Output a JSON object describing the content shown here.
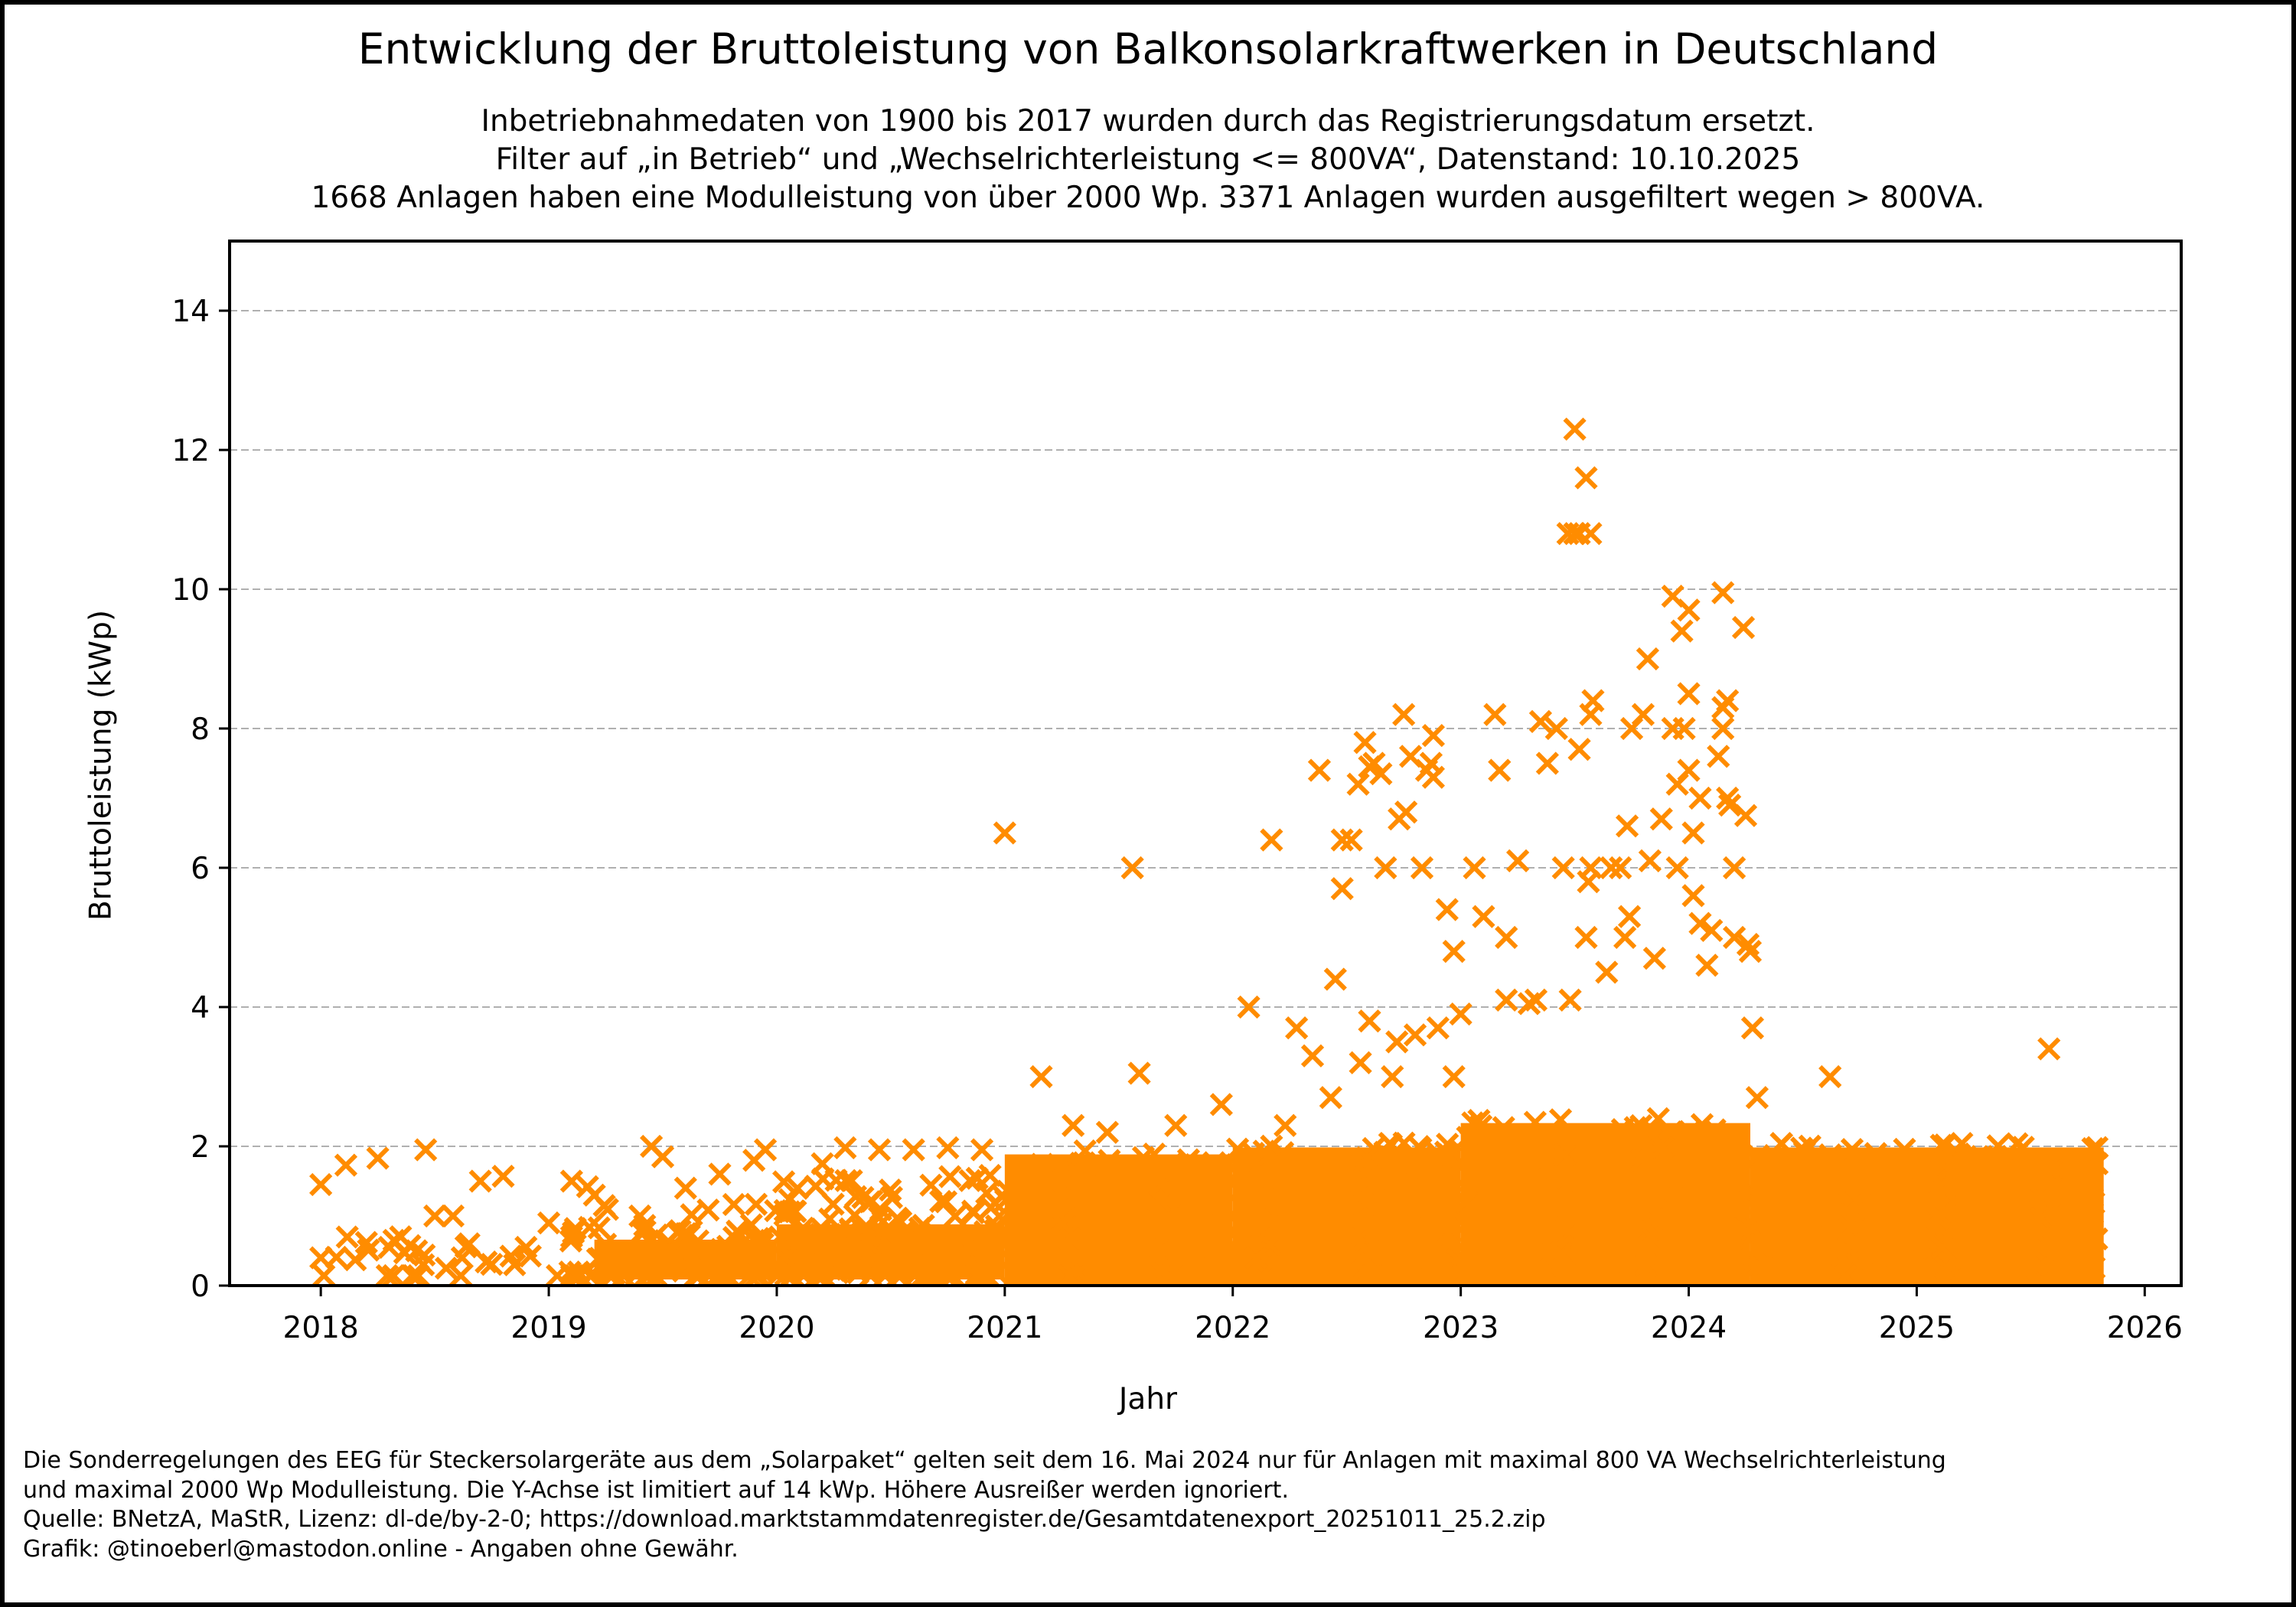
{
  "chart_data": {
    "type": "scatter",
    "title": "Entwicklung der Bruttoleistung von Balkonsolarkraftwerken in Deutschland",
    "subtitle_lines": [
      "Inbetriebnahmedaten von 1900 bis 2017 wurden durch das Registrierungsdatum ersetzt.",
      "Filter auf „in Betrieb“ und „Wechselrichterleistung <= 800VA“, Datenstand: 10.10.2025",
      "1668 Anlagen haben eine Modulleistung von über 2000 Wp. 3371 Anlagen wurden ausgefiltert wegen > 800VA."
    ],
    "xlabel": "Jahr",
    "ylabel": "Bruttoleistung (kWp)",
    "xlim": [
      2017.6,
      2026.16
    ],
    "ylim": [
      0,
      15
    ],
    "x_ticks": [
      2018,
      2019,
      2020,
      2021,
      2022,
      2023,
      2024,
      2025,
      2026
    ],
    "x_tick_labels": [
      "2018",
      "2019",
      "2020",
      "2021",
      "2022",
      "2023",
      "2024",
      "2025",
      "2026"
    ],
    "y_ticks": [
      0,
      2,
      4,
      6,
      8,
      10,
      12,
      14
    ],
    "y_tick_labels": [
      "0",
      "2",
      "4",
      "6",
      "8",
      "10",
      "12",
      "14"
    ],
    "grid": "y-dashed",
    "marker": "x",
    "color": "#ff8c00",
    "dense_bands": [
      {
        "x_start": 2018.0,
        "x_end": 2019.2,
        "y_max": 0.9,
        "density": 0.15
      },
      {
        "x_start": 2019.2,
        "x_end": 2020.0,
        "y_max": 1.2,
        "density": 0.55
      },
      {
        "x_start": 2020.0,
        "x_end": 2021.0,
        "y_max": 1.6,
        "density": 0.8
      },
      {
        "x_start": 2021.0,
        "x_end": 2022.0,
        "y_max": 1.95,
        "density": 0.95
      },
      {
        "x_start": 2022.0,
        "x_end": 2023.0,
        "y_max": 2.05,
        "density": 1.0
      },
      {
        "x_start": 2023.0,
        "x_end": 2024.27,
        "y_max": 2.4,
        "density": 1.0
      },
      {
        "x_start": 2024.27,
        "x_end": 2025.82,
        "y_max": 2.05,
        "density": 1.0
      }
    ],
    "points": [
      [
        2018.0,
        1.45
      ],
      [
        2018.0,
        0.4
      ],
      [
        2018.11,
        1.73
      ],
      [
        2018.25,
        1.83
      ],
      [
        2018.46,
        1.95
      ],
      [
        2018.2,
        0.62
      ],
      [
        2018.3,
        0.55
      ],
      [
        2018.35,
        0.7
      ],
      [
        2018.42,
        0.5
      ],
      [
        2018.5,
        1.0
      ],
      [
        2018.58,
        1.0
      ],
      [
        2018.65,
        0.6
      ],
      [
        2018.7,
        1.5
      ],
      [
        2018.8,
        1.57
      ],
      [
        2018.9,
        0.55
      ],
      [
        2019.0,
        0.9
      ],
      [
        2018.45,
        0.3
      ],
      [
        2018.55,
        0.25
      ],
      [
        2018.62,
        0.4
      ],
      [
        2018.85,
        0.3
      ],
      [
        2019.1,
        0.7
      ],
      [
        2019.1,
        1.5
      ],
      [
        2019.17,
        1.42
      ],
      [
        2019.2,
        1.3
      ],
      [
        2019.4,
        1.0
      ],
      [
        2019.45,
        2.0
      ],
      [
        2019.5,
        1.85
      ],
      [
        2019.6,
        1.4
      ],
      [
        2019.75,
        1.6
      ],
      [
        2019.9,
        1.8
      ],
      [
        2019.95,
        1.95
      ],
      [
        2020.2,
        1.75
      ],
      [
        2020.3,
        1.98
      ],
      [
        2020.45,
        1.95
      ],
      [
        2020.6,
        1.95
      ],
      [
        2020.75,
        1.98
      ],
      [
        2020.9,
        1.95
      ],
      [
        2021.0,
        6.5
      ],
      [
        2021.16,
        3.0
      ],
      [
        2021.56,
        6.0
      ],
      [
        2021.59,
        3.05
      ],
      [
        2021.3,
        2.3
      ],
      [
        2021.45,
        2.2
      ],
      [
        2021.75,
        2.3
      ],
      [
        2021.95,
        2.6
      ],
      [
        2022.07,
        4.0
      ],
      [
        2022.17,
        6.4
      ],
      [
        2022.23,
        2.3
      ],
      [
        2022.28,
        3.7
      ],
      [
        2022.35,
        3.3
      ],
      [
        2022.38,
        7.4
      ],
      [
        2022.43,
        2.7
      ],
      [
        2022.45,
        4.4
      ],
      [
        2022.48,
        5.7
      ],
      [
        2022.48,
        6.4
      ],
      [
        2022.52,
        6.4
      ],
      [
        2022.55,
        7.2
      ],
      [
        2022.58,
        7.8
      ],
      [
        2022.6,
        7.45
      ],
      [
        2022.62,
        7.5
      ],
      [
        2022.65,
        7.35
      ],
      [
        2022.67,
        6.0
      ],
      [
        2022.56,
        3.2
      ],
      [
        2022.6,
        3.8
      ],
      [
        2022.7,
        3.0
      ],
      [
        2022.72,
        3.5
      ],
      [
        2022.73,
        6.7
      ],
      [
        2022.75,
        8.2
      ],
      [
        2022.76,
        6.8
      ],
      [
        2022.78,
        7.6
      ],
      [
        2022.8,
        3.6
      ],
      [
        2022.83,
        6.0
      ],
      [
        2022.85,
        7.4
      ],
      [
        2022.87,
        7.5
      ],
      [
        2022.88,
        7.9
      ],
      [
        2022.88,
        7.3
      ],
      [
        2022.9,
        3.7
      ],
      [
        2022.94,
        5.4
      ],
      [
        2022.97,
        4.8
      ],
      [
        2023.0,
        3.9
      ],
      [
        2022.97,
        3.0
      ],
      [
        2023.06,
        6.0
      ],
      [
        2023.1,
        5.3
      ],
      [
        2023.15,
        8.2
      ],
      [
        2023.17,
        7.4
      ],
      [
        2023.2,
        5.0
      ],
      [
        2023.2,
        4.1
      ],
      [
        2023.25,
        6.1
      ],
      [
        2023.3,
        4.05
      ],
      [
        2023.33,
        4.1
      ],
      [
        2023.35,
        8.1
      ],
      [
        2023.38,
        7.5
      ],
      [
        2023.42,
        8.0
      ],
      [
        2023.45,
        6.0
      ],
      [
        2023.48,
        4.1
      ],
      [
        2023.5,
        12.3
      ],
      [
        2023.47,
        10.8
      ],
      [
        2023.5,
        10.8
      ],
      [
        2023.52,
        10.8
      ],
      [
        2023.57,
        10.8
      ],
      [
        2023.55,
        11.6
      ],
      [
        2023.52,
        7.7
      ],
      [
        2023.55,
        5.0
      ],
      [
        2023.56,
        5.8
      ],
      [
        2023.57,
        6.0
      ],
      [
        2023.57,
        8.2
      ],
      [
        2023.58,
        8.4
      ],
      [
        2023.64,
        4.5
      ],
      [
        2023.66,
        6.0
      ],
      [
        2023.7,
        6.0
      ],
      [
        2023.72,
        5.0
      ],
      [
        2023.74,
        5.3
      ],
      [
        2023.73,
        6.6
      ],
      [
        2023.75,
        8.0
      ],
      [
        2023.8,
        8.2
      ],
      [
        2023.82,
        9.0
      ],
      [
        2023.83,
        6.1
      ],
      [
        2023.85,
        4.7
      ],
      [
        2023.88,
        6.7
      ],
      [
        2023.93,
        9.9
      ],
      [
        2023.93,
        8.0
      ],
      [
        2023.95,
        7.2
      ],
      [
        2023.95,
        6.0
      ],
      [
        2023.97,
        9.4
      ],
      [
        2023.98,
        8.0
      ],
      [
        2024.0,
        9.7
      ],
      [
        2024.0,
        8.5
      ],
      [
        2024.0,
        7.4
      ],
      [
        2024.02,
        6.5
      ],
      [
        2024.02,
        5.6
      ],
      [
        2024.05,
        7.0
      ],
      [
        2024.05,
        5.2
      ],
      [
        2024.08,
        4.6
      ],
      [
        2024.1,
        5.1
      ],
      [
        2024.13,
        7.6
      ],
      [
        2024.15,
        9.95
      ],
      [
        2024.15,
        8.3
      ],
      [
        2024.17,
        8.4
      ],
      [
        2024.15,
        8.0
      ],
      [
        2024.17,
        7.0
      ],
      [
        2024.18,
        6.9
      ],
      [
        2024.2,
        6.0
      ],
      [
        2024.2,
        5.0
      ],
      [
        2024.24,
        9.45
      ],
      [
        2024.25,
        6.75
      ],
      [
        2024.26,
        4.9
      ],
      [
        2024.27,
        4.8
      ],
      [
        2024.28,
        3.7
      ],
      [
        2024.3,
        2.7
      ],
      [
        2024.62,
        3.0
      ],
      [
        2025.58,
        3.4
      ]
    ]
  },
  "footnote_lines": [
    "Die Sonderregelungen des EEG für Steckersolargeräte aus dem „Solarpaket“ gelten seit dem 16. Mai 2024 nur für Anlagen mit maximal 800 VA Wechselrichterleistung",
    "und maximal 2000 Wp Modulleistung. Die Y-Achse ist limitiert auf 14 kWp. Höhere Ausreißer werden ignoriert.",
    "Quelle: BNetzA, MaStR, Lizenz: dl-de/by-2-0; https://download.marktstammdatenregister.de/Gesamtdatenexport_20251011_25.2.zip",
    "Grafik: @tinoeberl@mastodon.online - Angaben ohne Gewähr."
  ]
}
